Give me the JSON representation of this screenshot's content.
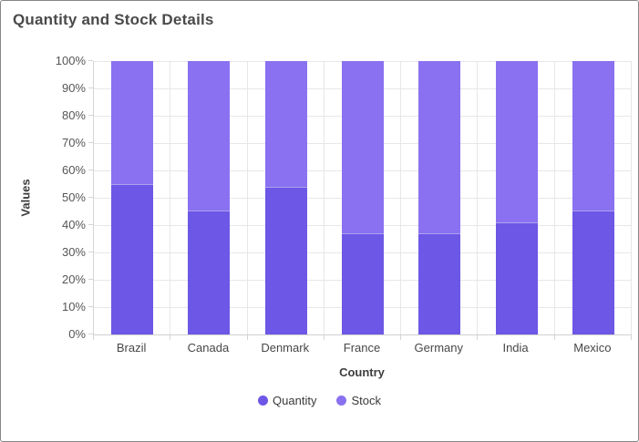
{
  "chart_data": {
    "type": "bar",
    "subtype": "stacked-column-100",
    "title": "Quantity and Stock Details",
    "categories": [
      "Brazil",
      "Canada",
      "Denmark",
      "France",
      "Germany",
      "India",
      "Mexico"
    ],
    "series": [
      {
        "name": "Quantity",
        "color": "#6C57E6",
        "values_pct": [
          55,
          45.5,
          54,
          37,
          37,
          41,
          45.5
        ]
      },
      {
        "name": "Stock",
        "color": "#8971F1",
        "values_pct": [
          45,
          54.5,
          46,
          63,
          63,
          59,
          54.5
        ]
      }
    ],
    "xlabel": "Country",
    "ylabel": "Values",
    "ylim": [
      0,
      100
    ],
    "y_tick_step": 10,
    "y_tick_labels": [
      "0%",
      "10%",
      "20%",
      "30%",
      "40%",
      "50%",
      "60%",
      "70%",
      "80%",
      "90%",
      "100%"
    ],
    "grid": true,
    "legend_position": "bottom-center",
    "colors": {
      "gridline": "#e7e7e7",
      "axis_line": "#d5d5d5",
      "tick_text": "#565656",
      "category_text": "#474747",
      "axis_title_text": "#3d3d3d",
      "legend_text": "#3a3a3a",
      "title_text": "#4a4a4a",
      "widget_border": "#858585",
      "background": "#ffffff"
    }
  }
}
